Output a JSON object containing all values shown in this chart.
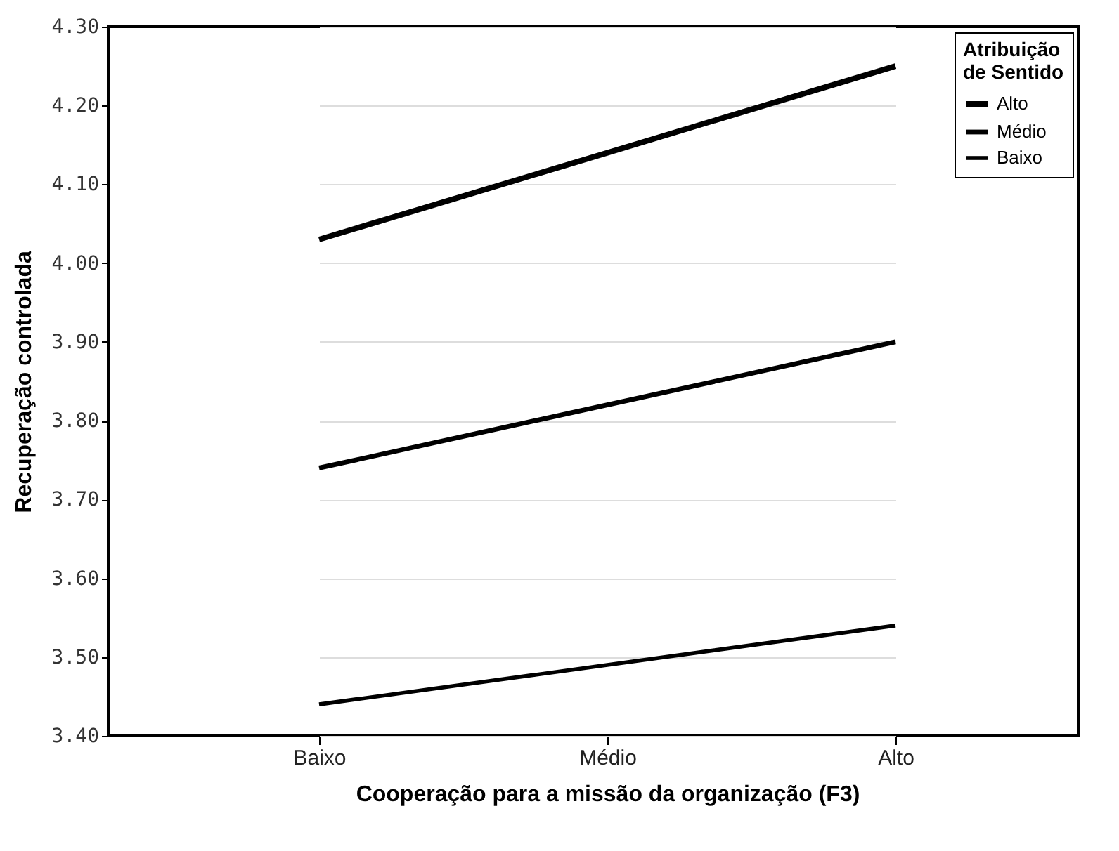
{
  "chart_data": {
    "type": "line",
    "xlabel": "Cooperação para a missão da organização (F3)",
    "ylabel": "Recuperação controlada",
    "legend_title": "Atribuição de Sentido",
    "categories": [
      "Baixo",
      "Médio",
      "Alto"
    ],
    "series": [
      {
        "name": "Alto",
        "color": "#000000",
        "values": [
          4.03,
          4.14,
          4.25
        ]
      },
      {
        "name": "Médio",
        "color": "#000000",
        "values": [
          3.74,
          3.82,
          3.9
        ]
      },
      {
        "name": "Baixo",
        "color": "#000000",
        "values": [
          3.44,
          3.49,
          3.54
        ]
      }
    ],
    "ylim": [
      3.4,
      4.3
    ],
    "yticks": [
      {
        "value": 3.4,
        "label": "3.40"
      },
      {
        "value": 3.5,
        "label": "3.50"
      },
      {
        "value": 3.6,
        "label": "3.60"
      },
      {
        "value": 3.7,
        "label": "3.70"
      },
      {
        "value": 3.8,
        "label": "3.80"
      },
      {
        "value": 3.9,
        "label": "3.90"
      },
      {
        "value": 4.0,
        "label": "4.00"
      },
      {
        "value": 4.1,
        "label": "4.10"
      },
      {
        "value": 4.2,
        "label": "4.20"
      },
      {
        "value": 4.3,
        "label": "4.30"
      }
    ],
    "grid": "y",
    "legend": "top right",
    "marker": "none",
    "line_style": "solid"
  }
}
